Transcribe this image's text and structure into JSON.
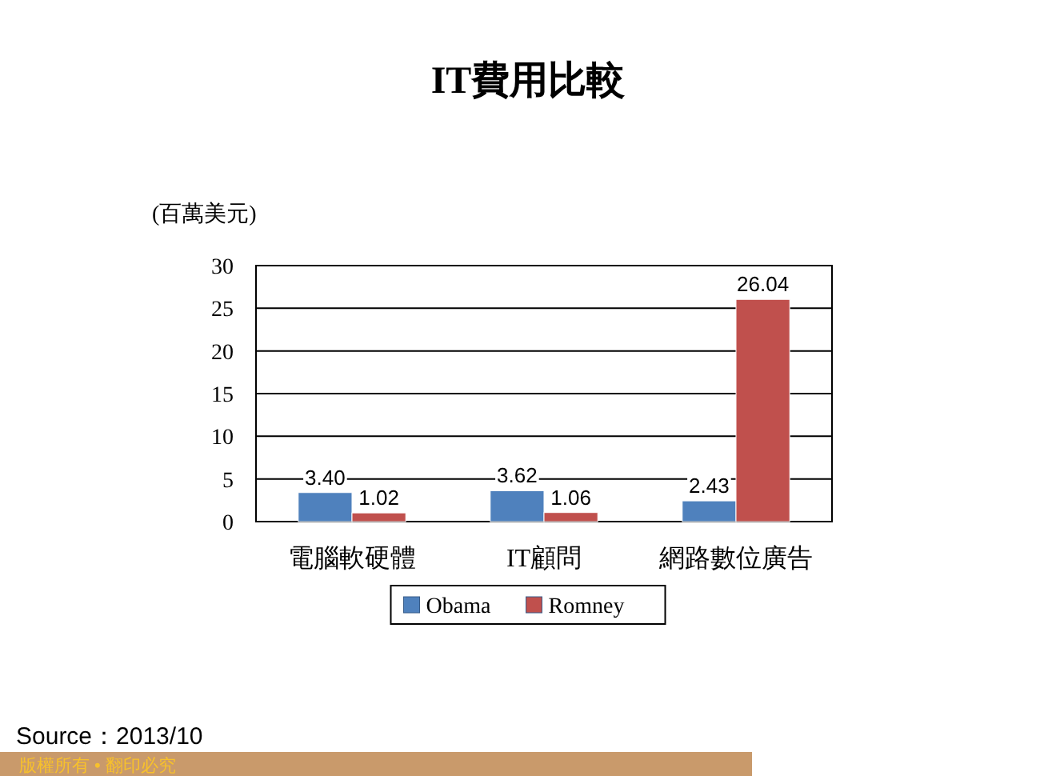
{
  "chart_data": {
    "type": "bar",
    "title": "IT費用比較",
    "ylabel": "(百萬美元)",
    "categories": [
      "電腦軟硬體",
      "IT顧問",
      "網路數位廣告"
    ],
    "series": [
      {
        "name": "Obama",
        "color": "#4f81bd",
        "values": [
          3.4,
          3.62,
          2.43
        ],
        "value_labels": [
          "3.40",
          "3.62",
          "2.43"
        ]
      },
      {
        "name": "Romney",
        "color": "#c0504d",
        "values": [
          1.02,
          1.06,
          26.04
        ],
        "value_labels": [
          "1.02",
          "1.06",
          "26.04"
        ]
      }
    ],
    "ylim": [
      0,
      30
    ],
    "yticks": [
      0,
      5,
      10,
      15,
      20,
      25,
      30
    ],
    "grid": "y",
    "legend": "bottom",
    "annotations": [
      "Source：2013/10",
      "版權所有 • 翻印必究"
    ]
  }
}
